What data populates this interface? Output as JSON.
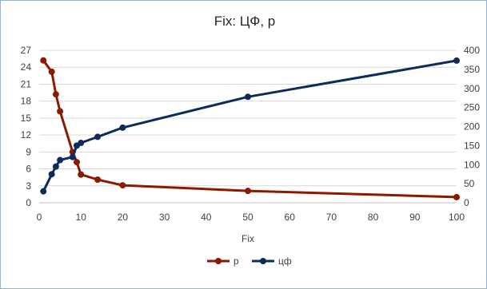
{
  "chart_data": {
    "type": "line",
    "title": "Fix: ЦФ, p",
    "xlabel": "Fix",
    "xlim": [
      0,
      100
    ],
    "xticks": [
      0,
      10,
      20,
      30,
      40,
      50,
      60,
      70,
      80,
      90,
      100
    ],
    "ylim_left": [
      0,
      27
    ],
    "yticks_left": [
      0,
      3,
      6,
      9,
      12,
      15,
      18,
      21,
      24,
      27
    ],
    "ylim_right": [
      0,
      400
    ],
    "yticks_right": [
      0,
      50,
      100,
      150,
      200,
      250,
      300,
      350,
      400
    ],
    "grid": "horizontal",
    "legend_position": "bottom",
    "series": [
      {
        "name": "p",
        "axis": "left",
        "color": "#8b1a00",
        "x": [
          1,
          3,
          4,
          5,
          8,
          9,
          10,
          14,
          20,
          50,
          100
        ],
        "y": [
          25.2,
          23.2,
          19.2,
          16.2,
          9.0,
          7.2,
          5.0,
          4.1,
          3.1,
          2.1,
          1.0
        ]
      },
      {
        "name": "цф",
        "axis": "right",
        "color": "#0e2c5a",
        "x": [
          1,
          3,
          4,
          5,
          8,
          9,
          10,
          14,
          20,
          50,
          100
        ],
        "y": [
          30,
          75,
          95,
          112,
          120,
          150,
          157,
          173,
          197,
          278,
          373
        ]
      }
    ]
  }
}
